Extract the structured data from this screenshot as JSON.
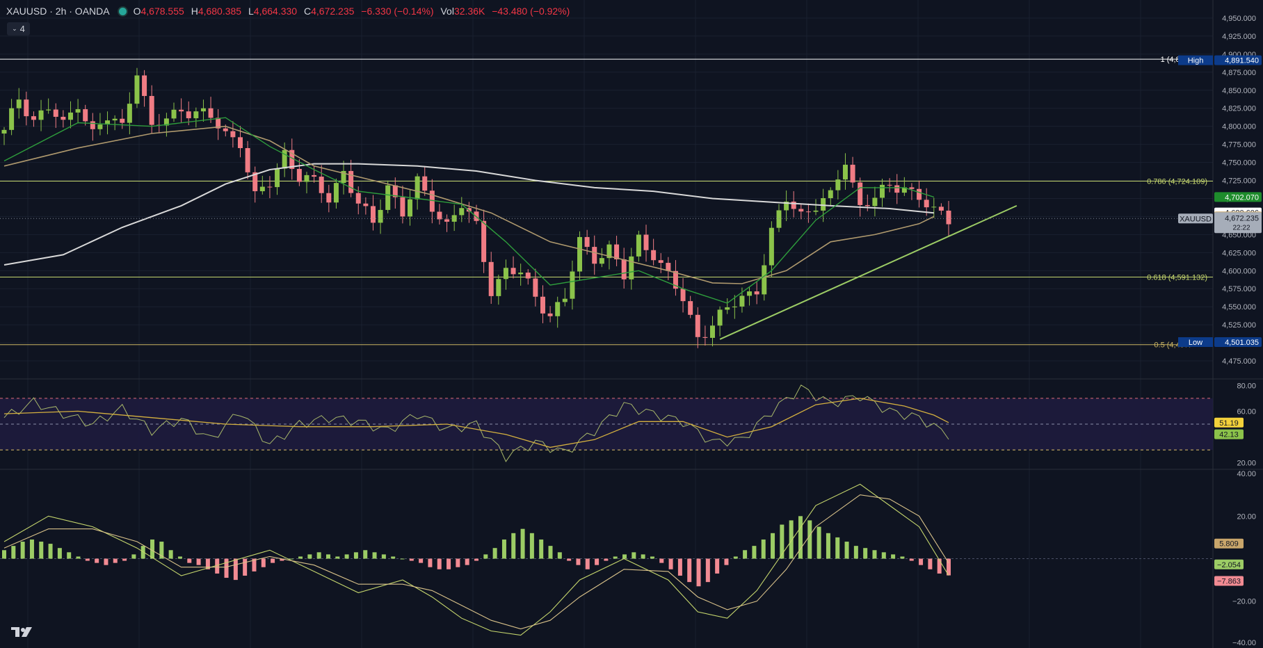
{
  "header": {
    "symbol": "XAUUSD · 2h · OANDA",
    "open_label": "O",
    "open": "4,678.555",
    "high_label": "H",
    "high": "4,680.385",
    "low_label": "L",
    "low": "4,664.330",
    "close_label": "C",
    "close": "4,672.235",
    "change": "−6.330 (−0.14%)",
    "vol_label": "Vol",
    "vol": "32.36K",
    "vol_change": "−43.480 (−0.92%)"
  },
  "indicators_toggle": {
    "count": "4"
  },
  "colors": {
    "background": "#0f1421",
    "up": "#8bc34a",
    "down": "#f07c84",
    "ma_fast": "#2e9d3c",
    "ma_mid": "#b09a6e",
    "ma_slow": "#d9d9d9",
    "trendline": "#9ccc65",
    "fib": "#c5d66d",
    "fib_low": "#cbb563",
    "rsi": "#a8b86a",
    "rsi_ma": "#d4b03f",
    "rsi_band": "#1f1b3e"
  },
  "chart_data": [
    {
      "type": "candlestick",
      "symbol": "XAUUSD",
      "timeframe": "2h",
      "y_axis": {
        "min": 4450,
        "max": 4975,
        "ticks": [
          "4,950.000",
          "4,925.000",
          "4,900.000",
          "4,875.000",
          "4,850.000",
          "4,825.000",
          "4,800.000",
          "4,775.000",
          "4,750.000",
          "4,725.000",
          "4,700.000",
          "4,675.000",
          "4,650.000",
          "4,625.000",
          "4,600.000",
          "4,575.000",
          "4,550.000",
          "4,525.000",
          "4,500.000",
          "4,475.000"
        ]
      },
      "ma_labels": [
        {
          "name": "MA fast",
          "value": "4,702.070",
          "price": 4702.07,
          "color": "#1e8c2c",
          "text_color": "#ffffff"
        },
        {
          "name": "MA slow",
          "value": "4,680.606",
          "price": 4680.606,
          "color": "#ffffff",
          "text_color": "#131722"
        },
        {
          "name": "MA mid",
          "value": "4,675.153",
          "price": 4675.153,
          "color": "#c9a66b",
          "text_color": "#131722"
        }
      ],
      "last_price": {
        "label": "XAUUSD",
        "value": "4,672.235",
        "price": 4672.235,
        "countdown": "22:22"
      },
      "high_marker": {
        "label": "High",
        "value": "4,891.540",
        "price": 4891.54
      },
      "low_marker": {
        "label": "Low",
        "value": "4,501.035",
        "price": 4501.035
      },
      "fib_levels": [
        {
          "label": "1 (4,893.",
          "price": 4893
        },
        {
          "label": "0.786 (4,724.109)",
          "price": 4724.109
        },
        {
          "label": "0.618 (4,591.132)",
          "price": 4591.132
        },
        {
          "label": "0.5 (4,497.",
          "price": 4497.5
        }
      ],
      "trendline": [
        {
          "bar": 0.57,
          "price": 4505
        },
        {
          "bar": 0.805,
          "price": 4690
        }
      ],
      "close_path": [
        [
          0,
          4790
        ],
        [
          2,
          4840
        ],
        [
          4,
          4810
        ],
        [
          6,
          4825
        ],
        [
          8,
          4800
        ],
        [
          10,
          4835
        ],
        [
          12,
          4790
        ],
        [
          14,
          4810
        ],
        [
          16,
          4800
        ],
        [
          18,
          4880
        ],
        [
          20,
          4795
        ],
        [
          22,
          4810
        ],
        [
          24,
          4825
        ],
        [
          26,
          4820
        ],
        [
          28,
          4810
        ],
        [
          30,
          4790
        ],
        [
          32,
          4780
        ],
        [
          34,
          4700
        ],
        [
          36,
          4720
        ],
        [
          38,
          4765
        ],
        [
          40,
          4730
        ],
        [
          42,
          4720
        ],
        [
          44,
          4700
        ],
        [
          46,
          4740
        ],
        [
          48,
          4690
        ],
        [
          50,
          4665
        ],
        [
          52,
          4720
        ],
        [
          54,
          4680
        ],
        [
          56,
          4720
        ],
        [
          58,
          4690
        ],
        [
          60,
          4665
        ],
        [
          62,
          4690
        ],
        [
          64,
          4660
        ],
        [
          66,
          4575
        ],
        [
          68,
          4600
        ],
        [
          70,
          4595
        ],
        [
          72,
          4565
        ],
        [
          74,
          4540
        ],
        [
          76,
          4560
        ],
        [
          78,
          4640
        ],
        [
          80,
          4620
        ],
        [
          82,
          4630
        ],
        [
          84,
          4590
        ],
        [
          86,
          4645
        ],
        [
          88,
          4625
        ],
        [
          90,
          4590
        ],
        [
          92,
          4560
        ],
        [
          94,
          4510
        ],
        [
          96,
          4525
        ],
        [
          98,
          4545
        ],
        [
          100,
          4565
        ],
        [
          102,
          4575
        ],
        [
          104,
          4650
        ],
        [
          106,
          4700
        ],
        [
          108,
          4680
        ],
        [
          110,
          4690
        ],
        [
          112,
          4700
        ],
        [
          114,
          4755
        ],
        [
          116,
          4690
        ],
        [
          118,
          4700
        ],
        [
          120,
          4715
        ],
        [
          122,
          4720
        ],
        [
          124,
          4700
        ],
        [
          126,
          4680
        ],
        [
          128,
          4672
        ]
      ],
      "ma_fast_path": [
        [
          0,
          4752
        ],
        [
          10,
          4805
        ],
        [
          20,
          4800
        ],
        [
          30,
          4812
        ],
        [
          36,
          4772
        ],
        [
          42,
          4740
        ],
        [
          48,
          4710
        ],
        [
          56,
          4700
        ],
        [
          62,
          4692
        ],
        [
          68,
          4640
        ],
        [
          74,
          4580
        ],
        [
          80,
          4590
        ],
        [
          86,
          4600
        ],
        [
          92,
          4575
        ],
        [
          98,
          4555
        ],
        [
          104,
          4600
        ],
        [
          110,
          4670
        ],
        [
          116,
          4715
        ],
        [
          122,
          4715
        ],
        [
          126,
          4702
        ]
      ],
      "ma_mid_path": [
        [
          0,
          4745
        ],
        [
          10,
          4770
        ],
        [
          20,
          4790
        ],
        [
          30,
          4800
        ],
        [
          36,
          4780
        ],
        [
          42,
          4745
        ],
        [
          50,
          4725
        ],
        [
          58,
          4705
        ],
        [
          66,
          4680
        ],
        [
          74,
          4640
        ],
        [
          82,
          4620
        ],
        [
          90,
          4600
        ],
        [
          96,
          4583
        ],
        [
          100,
          4582
        ],
        [
          106,
          4600
        ],
        [
          112,
          4640
        ],
        [
          118,
          4650
        ],
        [
          124,
          4665
        ],
        [
          126,
          4675
        ]
      ],
      "ma_slow_path": [
        [
          0,
          4608
        ],
        [
          8,
          4622
        ],
        [
          16,
          4660
        ],
        [
          24,
          4690
        ],
        [
          30,
          4720
        ],
        [
          36,
          4740
        ],
        [
          42,
          4748
        ],
        [
          48,
          4748
        ],
        [
          56,
          4745
        ],
        [
          64,
          4738
        ],
        [
          72,
          4725
        ],
        [
          80,
          4715
        ],
        [
          88,
          4710
        ],
        [
          96,
          4700
        ],
        [
          104,
          4695
        ],
        [
          112,
          4690
        ],
        [
          120,
          4686
        ],
        [
          126,
          4680
        ]
      ]
    },
    {
      "type": "line",
      "name": "RSI",
      "y_axis": {
        "min": 15,
        "max": 85,
        "ticks": [
          "80.00",
          "60.00",
          "20.00"
        ]
      },
      "bands": [
        70,
        50,
        30
      ],
      "series": [
        {
          "value": "51.19",
          "last": 51.19
        },
        {
          "value": "42.13",
          "last": 42.13
        }
      ],
      "rsi_path": [
        [
          0,
          55
        ],
        [
          4,
          67
        ],
        [
          8,
          58
        ],
        [
          12,
          50
        ],
        [
          16,
          62
        ],
        [
          20,
          45
        ],
        [
          24,
          54
        ],
        [
          28,
          38
        ],
        [
          32,
          60
        ],
        [
          36,
          34
        ],
        [
          40,
          50
        ],
        [
          44,
          55
        ],
        [
          48,
          52
        ],
        [
          52,
          45
        ],
        [
          56,
          58
        ],
        [
          60,
          46
        ],
        [
          64,
          50
        ],
        [
          68,
          25
        ],
        [
          72,
          36
        ],
        [
          76,
          28
        ],
        [
          80,
          45
        ],
        [
          84,
          65
        ],
        [
          88,
          58
        ],
        [
          92,
          52
        ],
        [
          96,
          36
        ],
        [
          100,
          38
        ],
        [
          104,
          60
        ],
        [
          108,
          78
        ],
        [
          112,
          66
        ],
        [
          116,
          72
        ],
        [
          120,
          60
        ],
        [
          124,
          55
        ],
        [
          126,
          48
        ],
        [
          128,
          42.13
        ]
      ],
      "rsi_ma_path": [
        [
          0,
          58
        ],
        [
          10,
          60
        ],
        [
          20,
          55
        ],
        [
          30,
          50
        ],
        [
          40,
          48
        ],
        [
          50,
          48
        ],
        [
          60,
          50
        ],
        [
          68,
          42
        ],
        [
          74,
          32
        ],
        [
          80,
          38
        ],
        [
          86,
          52
        ],
        [
          92,
          52
        ],
        [
          98,
          40
        ],
        [
          104,
          48
        ],
        [
          110,
          65
        ],
        [
          116,
          70
        ],
        [
          122,
          64
        ],
        [
          126,
          57
        ],
        [
          128,
          51.19
        ]
      ]
    },
    {
      "type": "histogram",
      "name": "MACD",
      "y_axis": {
        "min": -42,
        "max": 42,
        "ticks": [
          "40.00",
          "20.00",
          "−20.00",
          "−40.00"
        ]
      },
      "labels": [
        {
          "value": "5.809",
          "last": 5.809
        },
        {
          "value": "−2.054",
          "last": -2.054
        },
        {
          "value": "−7.863",
          "last": -7.863
        }
      ],
      "histogram": [
        4,
        6,
        8,
        9,
        8,
        7,
        5,
        3,
        1,
        -1,
        -2,
        -3,
        -2,
        -1,
        2,
        6,
        9,
        8,
        4,
        1,
        -2,
        -3,
        -5,
        -7,
        -9,
        -10,
        -8,
        -6,
        -4,
        -2,
        -1,
        0,
        1,
        2,
        3,
        2,
        1,
        2,
        3,
        4,
        3,
        2,
        1,
        0,
        -1,
        -2,
        -4,
        -5,
        -5,
        -4,
        -3,
        -1,
        2,
        5,
        9,
        12,
        14,
        12,
        9,
        6,
        3,
        -1,
        -3,
        -5,
        -3,
        -1,
        1,
        2,
        3,
        2,
        1,
        -2,
        -5,
        -8,
        -11,
        -13,
        -11,
        -7,
        -3,
        1,
        4,
        6,
        9,
        12,
        16,
        18,
        20,
        18,
        15,
        12,
        10,
        8,
        6,
        5,
        4,
        3,
        2,
        1,
        -1,
        -3,
        -5,
        -7,
        -7.863
      ],
      "macd_path": [
        [
          0,
          8
        ],
        [
          6,
          20
        ],
        [
          12,
          15
        ],
        [
          18,
          5
        ],
        [
          24,
          -8
        ],
        [
          30,
          -2
        ],
        [
          36,
          4
        ],
        [
          42,
          -6
        ],
        [
          48,
          -16
        ],
        [
          54,
          -10
        ],
        [
          58,
          -18
        ],
        [
          62,
          -28
        ],
        [
          66,
          -34
        ],
        [
          70,
          -36
        ],
        [
          74,
          -25
        ],
        [
          78,
          -10
        ],
        [
          84,
          0
        ],
        [
          90,
          -10
        ],
        [
          94,
          -25
        ],
        [
          98,
          -28
        ],
        [
          102,
          -15
        ],
        [
          106,
          5
        ],
        [
          110,
          25
        ],
        [
          116,
          35
        ],
        [
          120,
          25
        ],
        [
          124,
          15
        ],
        [
          128,
          -7.863
        ]
      ],
      "signal_path": [
        [
          0,
          5
        ],
        [
          6,
          14
        ],
        [
          12,
          14
        ],
        [
          18,
          8
        ],
        [
          24,
          -4
        ],
        [
          30,
          -4
        ],
        [
          36,
          1
        ],
        [
          42,
          -3
        ],
        [
          48,
          -12
        ],
        [
          54,
          -12
        ],
        [
          58,
          -15
        ],
        [
          62,
          -22
        ],
        [
          66,
          -29
        ],
        [
          70,
          -33
        ],
        [
          74,
          -29
        ],
        [
          78,
          -18
        ],
        [
          84,
          -5
        ],
        [
          90,
          -6
        ],
        [
          94,
          -18
        ],
        [
          98,
          -24
        ],
        [
          102,
          -20
        ],
        [
          106,
          -5
        ],
        [
          110,
          15
        ],
        [
          116,
          30
        ],
        [
          120,
          28
        ],
        [
          124,
          20
        ],
        [
          128,
          -2.054
        ]
      ]
    }
  ]
}
